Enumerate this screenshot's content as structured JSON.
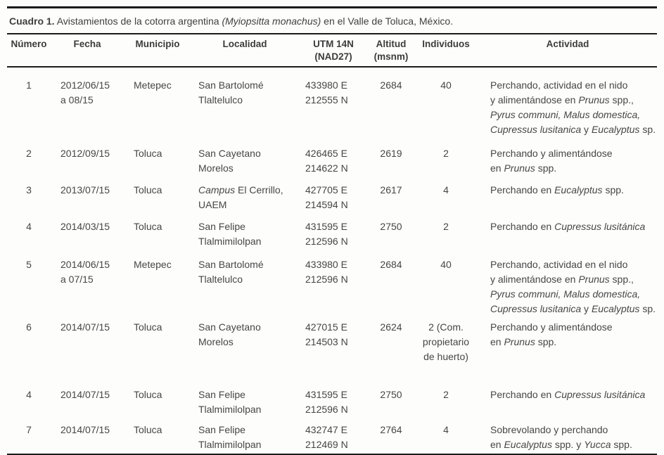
{
  "title": {
    "segments": [
      {
        "t": "Cuadro 1.",
        "b": true
      },
      {
        "t": " Avistamientos de la cotorra argentina "
      },
      {
        "t": "(Myiopsitta monachus)",
        "i": true
      },
      {
        "t": " en el Valle de Toluca, México."
      }
    ]
  },
  "table": {
    "columns": [
      {
        "id": "numero",
        "label": "Número"
      },
      {
        "id": "fecha",
        "label": "Fecha"
      },
      {
        "id": "municipio",
        "label": "Municipio"
      },
      {
        "id": "localidad",
        "label": "Localidad"
      },
      {
        "id": "utm",
        "label": "UTM 14N\n(NAD27)"
      },
      {
        "id": "altitud",
        "label": "Altitud\n(msnm)"
      },
      {
        "id": "individuos",
        "label": "Individuos"
      },
      {
        "id": "actividad",
        "label": "Actividad"
      }
    ],
    "rows": [
      {
        "numero": "1",
        "fecha": "2012/06/15\na 08/15",
        "municipio": "Metepec",
        "localidad": [
          {
            "t": "San Bartolomé\nTlaltelulco"
          }
        ],
        "utm": "433980 E\n212555 N",
        "altitud": "2684",
        "individuos": "40",
        "actividad": [
          {
            "t": "Perchando, actividad en el nido\ny alimentándose en "
          },
          {
            "t": "Prunus",
            "i": true
          },
          {
            "t": " spp.,\n"
          },
          {
            "t": "Pyrus communi, Malus domestica,",
            "i": true
          },
          {
            "t": "\n"
          },
          {
            "t": "Cupressus lusitanica",
            "i": true
          },
          {
            "t": " y "
          },
          {
            "t": "Eucalyptus",
            "i": true
          },
          {
            "t": " sp."
          }
        ]
      },
      {
        "numero": "2",
        "fecha": "2012/09/15",
        "municipio": "Toluca",
        "localidad": [
          {
            "t": "San Cayetano\nMorelos"
          }
        ],
        "utm": "426465 E\n214622 N",
        "altitud": "2619",
        "individuos": "2",
        "actividad": [
          {
            "t": "Perchando y alimentándose\nen "
          },
          {
            "t": "Prunus",
            "i": true
          },
          {
            "t": " spp."
          }
        ]
      },
      {
        "numero": "3",
        "fecha": "2013/07/15",
        "municipio": "Toluca",
        "localidad": [
          {
            "t": "Campus",
            "i": true
          },
          {
            "t": " El Cerrillo,\nUAEM"
          }
        ],
        "utm": "427705 E\n214594 N",
        "altitud": "2617",
        "individuos": "4",
        "actividad": [
          {
            "t": "Perchando en "
          },
          {
            "t": "Eucalyptus",
            "i": true
          },
          {
            "t": " spp."
          }
        ]
      },
      {
        "numero": "4",
        "fecha": "2014/03/15",
        "municipio": "Toluca",
        "localidad": [
          {
            "t": "San Felipe\nTlalmimilolpan"
          }
        ],
        "utm": "431595 E\n212596 N",
        "altitud": "2750",
        "individuos": "2",
        "actividad": [
          {
            "t": "Perchando en "
          },
          {
            "t": "Cupressus lusitánica",
            "i": true
          }
        ]
      },
      {
        "numero": "5",
        "fecha": "2014/06/15\na 07/15",
        "municipio": "Metepec",
        "localidad": [
          {
            "t": "San Bartolomé\nTlaltelulco"
          }
        ],
        "utm": "433980 E\n212596 N",
        "altitud": "2684",
        "individuos": "40",
        "actividad": [
          {
            "t": "Perchando, actividad en el nido\ny alimentándose en "
          },
          {
            "t": "Prunus",
            "i": true
          },
          {
            "t": " spp.,\n"
          },
          {
            "t": "Pyrus communi, Malus domestica,",
            "i": true
          },
          {
            "t": "\n"
          },
          {
            "t": "Cupressus lusitanica",
            "i": true
          },
          {
            "t": " y "
          },
          {
            "t": "Eucalyptus",
            "i": true
          },
          {
            "t": " sp."
          }
        ]
      },
      {
        "numero": "6",
        "fecha": "2014/07/15",
        "municipio": "Toluca",
        "localidad": [
          {
            "t": "San Cayetano\nMorelos"
          }
        ],
        "utm": "427015 E\n214503 N",
        "altitud": "2624",
        "individuos": "2 (Com.\npropietario\nde huerto)",
        "actividad": [
          {
            "t": "Perchando y alimentándose\nen "
          },
          {
            "t": "Prunus",
            "i": true
          },
          {
            "t": " spp."
          }
        ]
      },
      {
        "numero": "4",
        "fecha": "2014/07/15",
        "municipio": "Toluca",
        "localidad": [
          {
            "t": "San Felipe\nTlalmimilolpan"
          }
        ],
        "utm": "431595 E\n212596 N",
        "altitud": "2750",
        "individuos": "2",
        "actividad": [
          {
            "t": "Perchando en "
          },
          {
            "t": "Cupressus lusitánica",
            "i": true
          }
        ]
      },
      {
        "numero": "7",
        "fecha": "2014/07/15",
        "municipio": "Toluca",
        "localidad": [
          {
            "t": "San Felipe\nTlalmimilolpan"
          }
        ],
        "utm": "432747 E\n212469 N",
        "altitud": "2764",
        "individuos": "4",
        "actividad": [
          {
            "t": "Sobrevolando y perchando\nen "
          },
          {
            "t": "Eucalyptus",
            "i": true
          },
          {
            "t": " spp. y "
          },
          {
            "t": "Yucca",
            "i": true
          },
          {
            "t": " spp."
          }
        ]
      }
    ]
  }
}
